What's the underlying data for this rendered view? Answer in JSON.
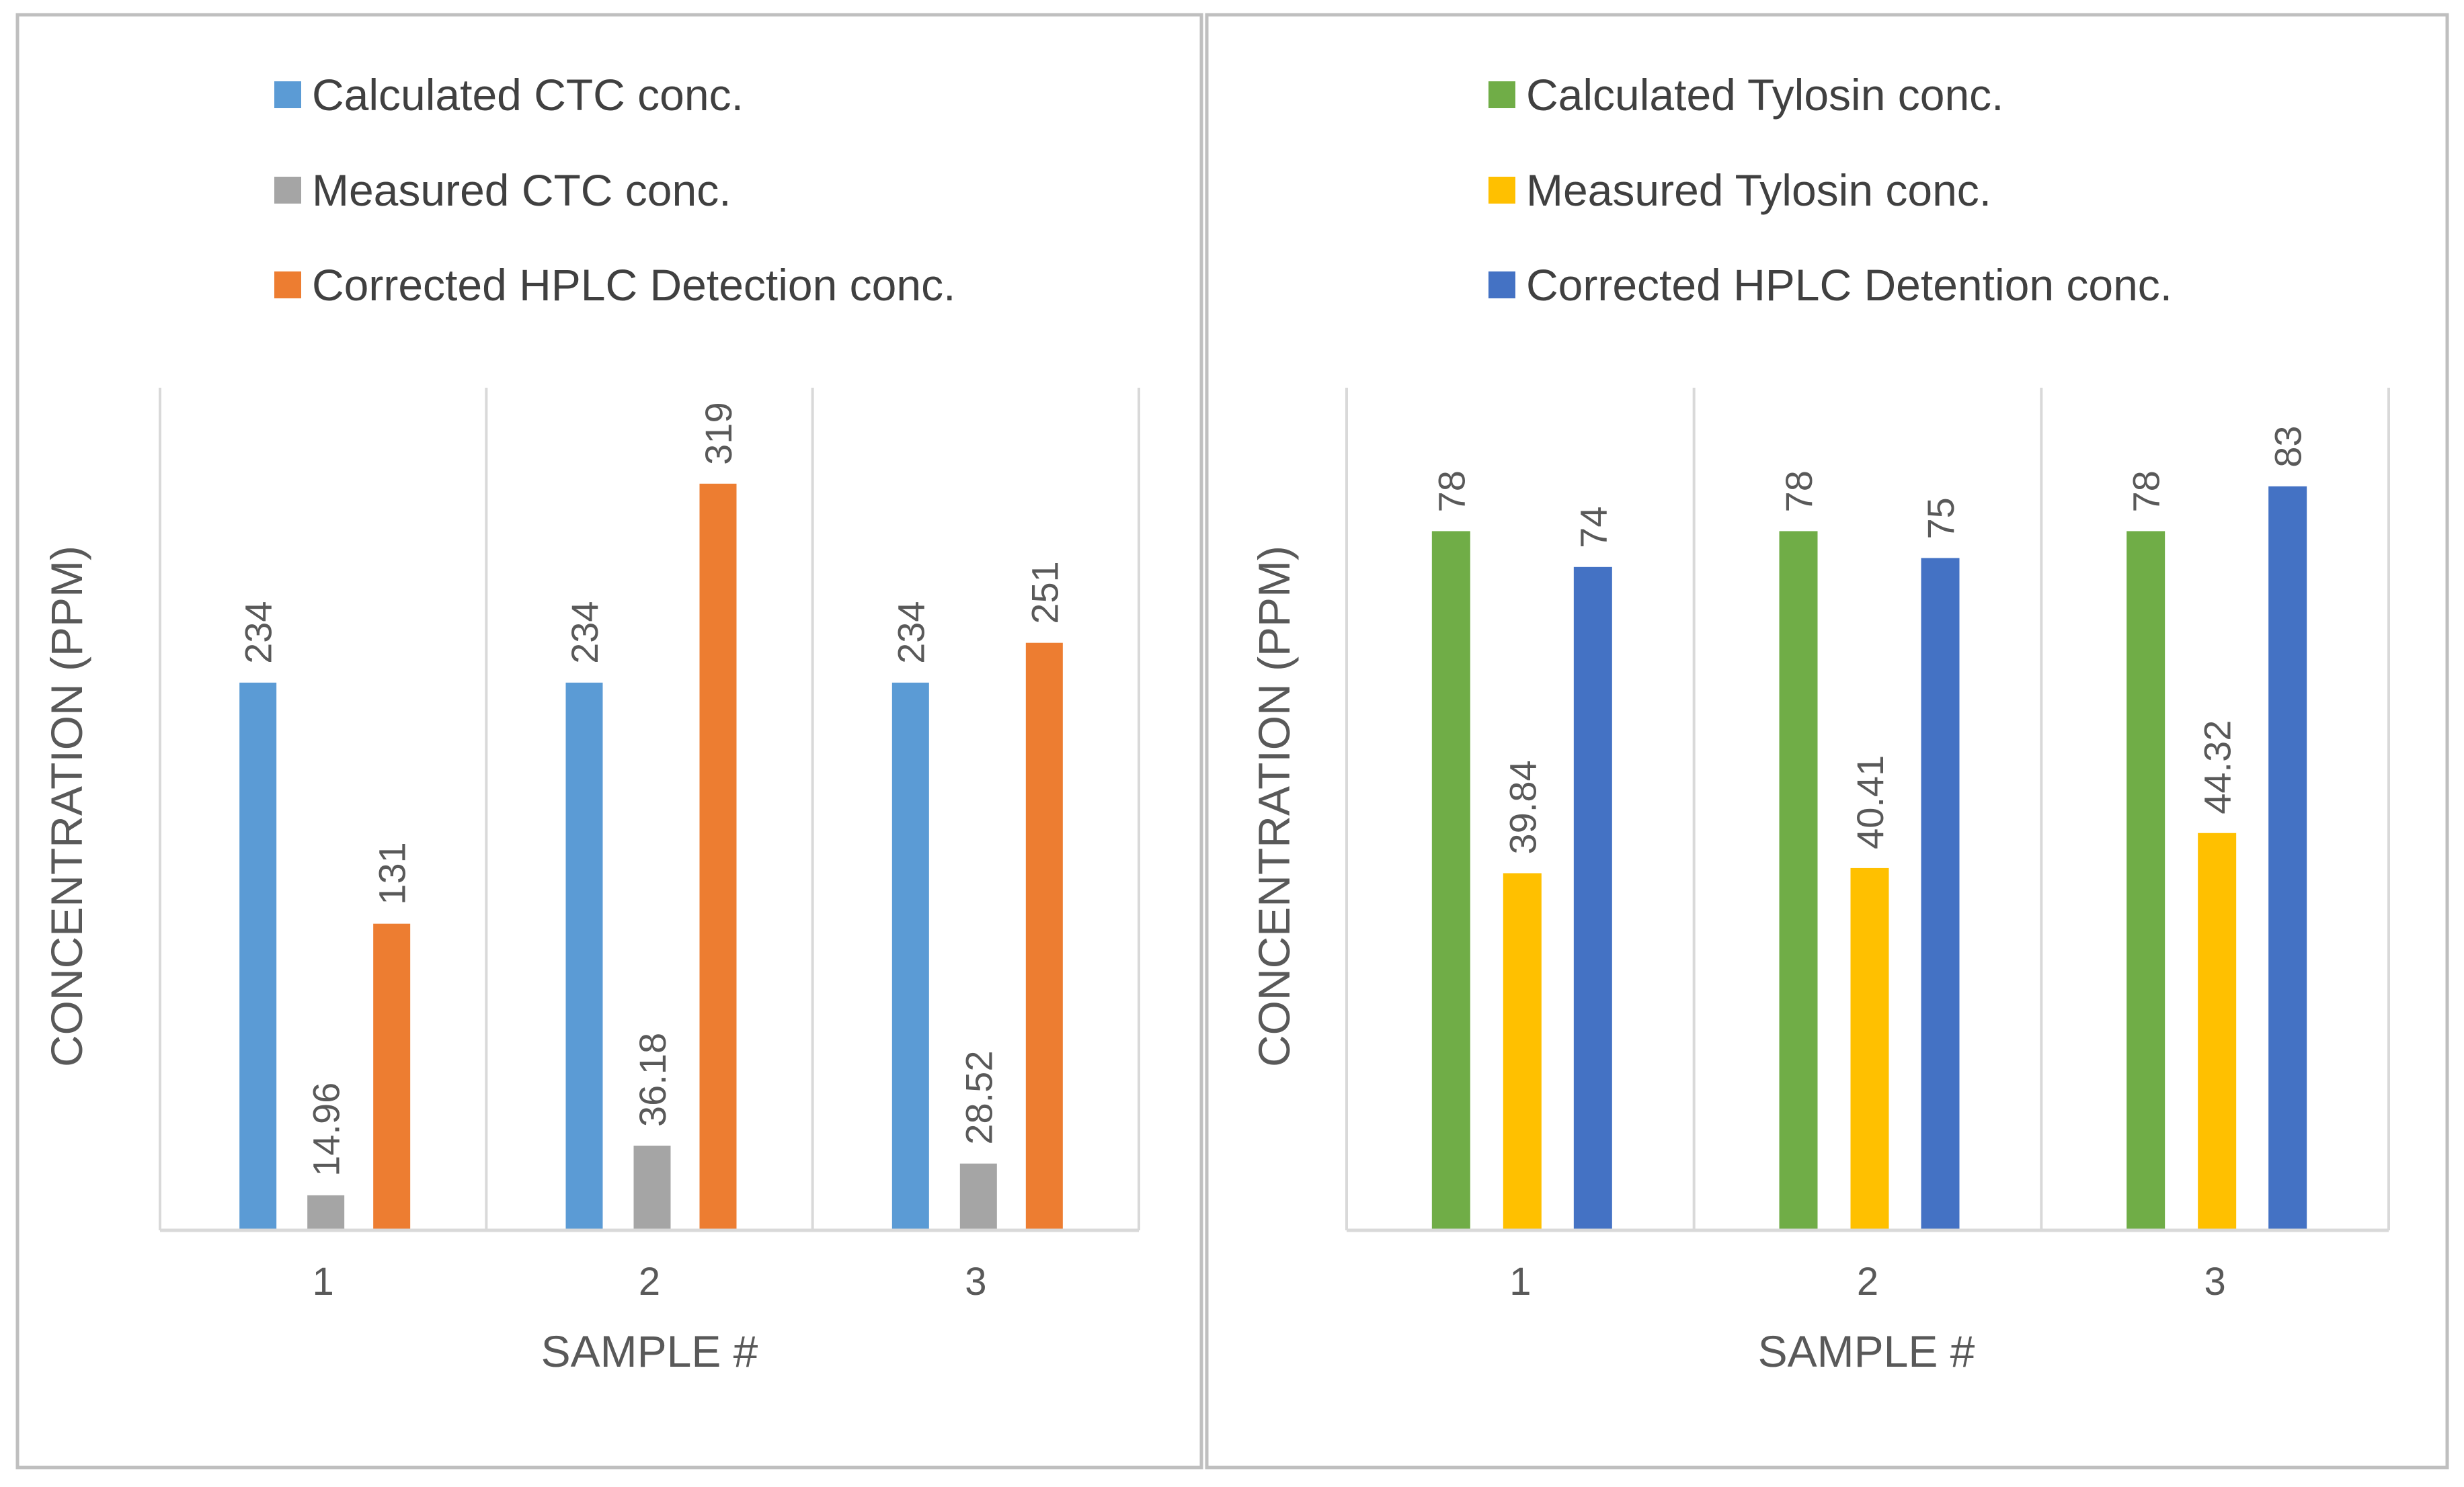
{
  "colors": {
    "frame": "#bfbfbf",
    "axis": "#d9d9d9",
    "gridline": "#d9d9d9",
    "label_text": "#595959",
    "legend_text": "#404040"
  },
  "chart_data": [
    {
      "type": "bar",
      "categories": [
        "1",
        "2",
        "3"
      ],
      "series": [
        {
          "name": "Calculated CTC conc.",
          "color": "#5b9bd5",
          "values": [
            234,
            234,
            234
          ],
          "labels": [
            "234",
            "234",
            "234"
          ]
        },
        {
          "name": "Measured CTC conc.",
          "color": "#a5a5a5",
          "values": [
            14.96,
            36.18,
            28.52
          ],
          "labels": [
            "14.96",
            "36.18",
            "28.52"
          ]
        },
        {
          "name": "Corrected HPLC Detection conc.",
          "color": "#ed7d31",
          "values": [
            131,
            319,
            251
          ],
          "labels": [
            "131",
            "319",
            "251"
          ]
        }
      ],
      "title": "",
      "xlabel": "SAMPLE #",
      "ylabel": "CONCENTRATION (PPM)",
      "ylim": [
        0,
        360
      ],
      "legend_position": "top",
      "grid": "vertical separators between categories"
    },
    {
      "type": "bar",
      "categories": [
        "1",
        "2",
        "3"
      ],
      "series": [
        {
          "name": "Calculated Tylosin conc.",
          "color": "#70ad47",
          "values": [
            78,
            78,
            78
          ],
          "labels": [
            "78",
            "78",
            "78"
          ]
        },
        {
          "name": "Measured Tylosin conc.",
          "color": "#ffc000",
          "values": [
            39.84,
            40.41,
            44.32
          ],
          "labels": [
            "39.84",
            "40.41",
            "44.32"
          ]
        },
        {
          "name": "Corrected HPLC Detention conc.",
          "color": "#4472c4",
          "values": [
            74,
            75,
            83
          ],
          "labels": [
            "74",
            "75",
            "83"
          ]
        }
      ],
      "title": "",
      "xlabel": "SAMPLE #",
      "ylabel": "CONCENTRATION (PPM)",
      "ylim": [
        0,
        94
      ],
      "legend_position": "top",
      "grid": "vertical separators between categories"
    }
  ]
}
